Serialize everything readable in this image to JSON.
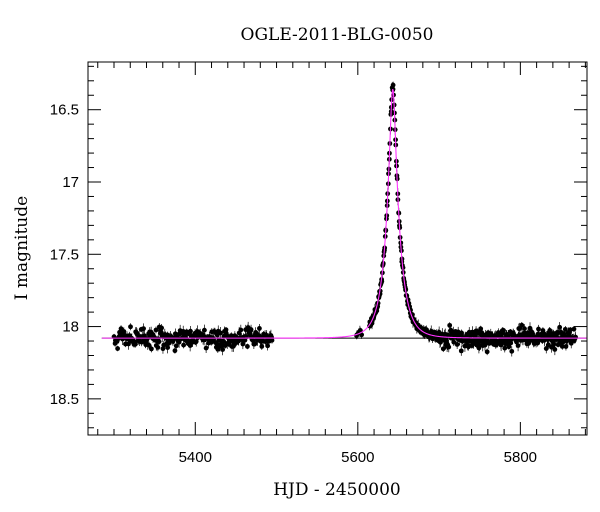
{
  "chart_data": {
    "type": "scatter",
    "title": "OGLE-2011-BLG-0050",
    "xlabel": "HJD - 2450000",
    "ylabel": "I magnitude",
    "xlim": [
      5268,
      5882
    ],
    "ylim": [
      18.75,
      16.17
    ],
    "y_inverted": true,
    "x_ticks": [
      5400,
      5600,
      5800
    ],
    "y_ticks": [
      16.5,
      17,
      17.5,
      18,
      18.5
    ],
    "x_tick_labels": [
      "5400",
      "5600",
      "5800"
    ],
    "y_tick_labels": [
      "16.5",
      "17",
      "17.5",
      "18",
      "18.5"
    ],
    "model": {
      "color": "#ff33ff",
      "baseline_mag": 18.08,
      "t0": 5643,
      "tE": 16.5,
      "u0": 0.208,
      "blend_fraction": 1.0
    },
    "baseline_line_mag": 18.08,
    "observations": {
      "segments": [
        {
          "x_start": 5300,
          "x_end": 5495,
          "n": 260,
          "scatter_mag": 0.05
        },
        {
          "x_start": 5597,
          "x_end": 5606,
          "n": 6,
          "scatter_mag": 0.02
        },
        {
          "x_start": 5614,
          "x_end": 5700,
          "n": 190,
          "scatter_mag": 0.02
        },
        {
          "x_start": 5700,
          "x_end": 5868,
          "n": 300,
          "scatter_mag": 0.05
        }
      ],
      "error_bar_mag": 0.03
    },
    "grid": false,
    "legend": "none"
  }
}
